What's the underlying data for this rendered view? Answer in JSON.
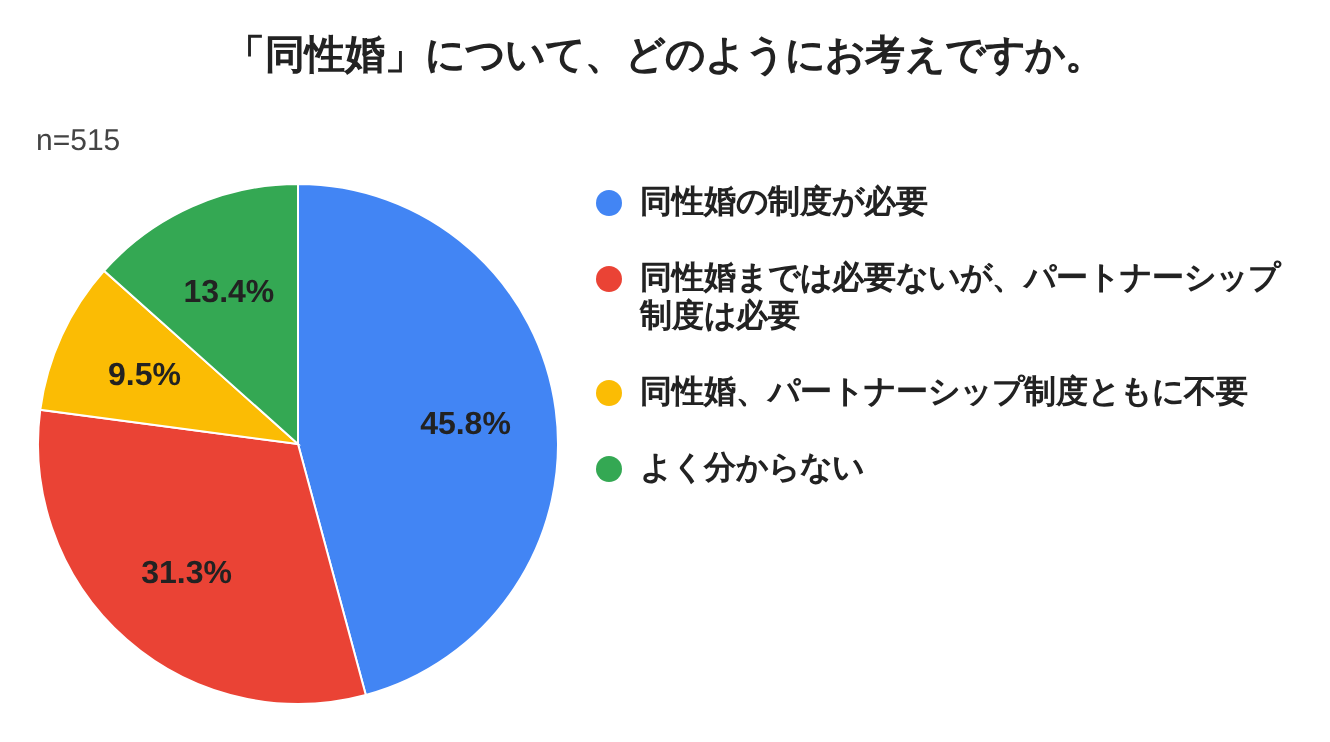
{
  "chart_data": {
    "type": "pie",
    "title": "「同性婚」について、どのようにお考えですか。",
    "annotations": [
      "n=515"
    ],
    "categories": [
      "同性婚の制度が必要",
      "同性婚までは必要ないが、パートナーシップ制度は必要",
      "同性婚、パートナーシップ制度ともに不要",
      "よく分からない"
    ],
    "values": [
      45.8,
      31.3,
      9.5,
      13.4
    ],
    "colors": [
      "#4285f4",
      "#ea4335",
      "#fbbc04",
      "#34a853"
    ],
    "value_labels": [
      "45.8%",
      "31.3%",
      "9.5%",
      "13.4%"
    ],
    "legend": "right"
  }
}
